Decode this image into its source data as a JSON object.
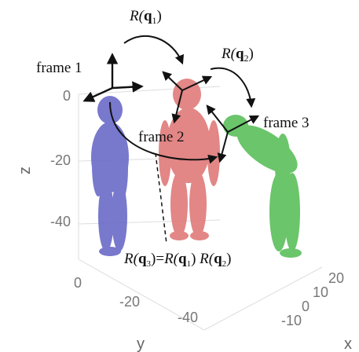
{
  "labels": {
    "r_q1": [
      "R(",
      "q",
      "1",
      ")"
    ],
    "r_q2": [
      "R(",
      "q",
      "2",
      ")"
    ],
    "frame_1": "frame 1",
    "frame_2": "frame 2",
    "frame_3": "frame 3",
    "equation": [
      "R(",
      "q",
      "3",
      ")=",
      "R(",
      "q",
      "1",
      ") ",
      "R(",
      "q",
      "2",
      ")"
    ]
  },
  "axes": {
    "z": {
      "label": "z",
      "ticks": [
        "0",
        "-20",
        "-40"
      ]
    },
    "y": {
      "label": "y",
      "ticks": [
        "0",
        "-20",
        "-40"
      ]
    },
    "x": {
      "label": "x",
      "ticks": [
        "20",
        "10",
        "0",
        "-10"
      ]
    }
  }
}
